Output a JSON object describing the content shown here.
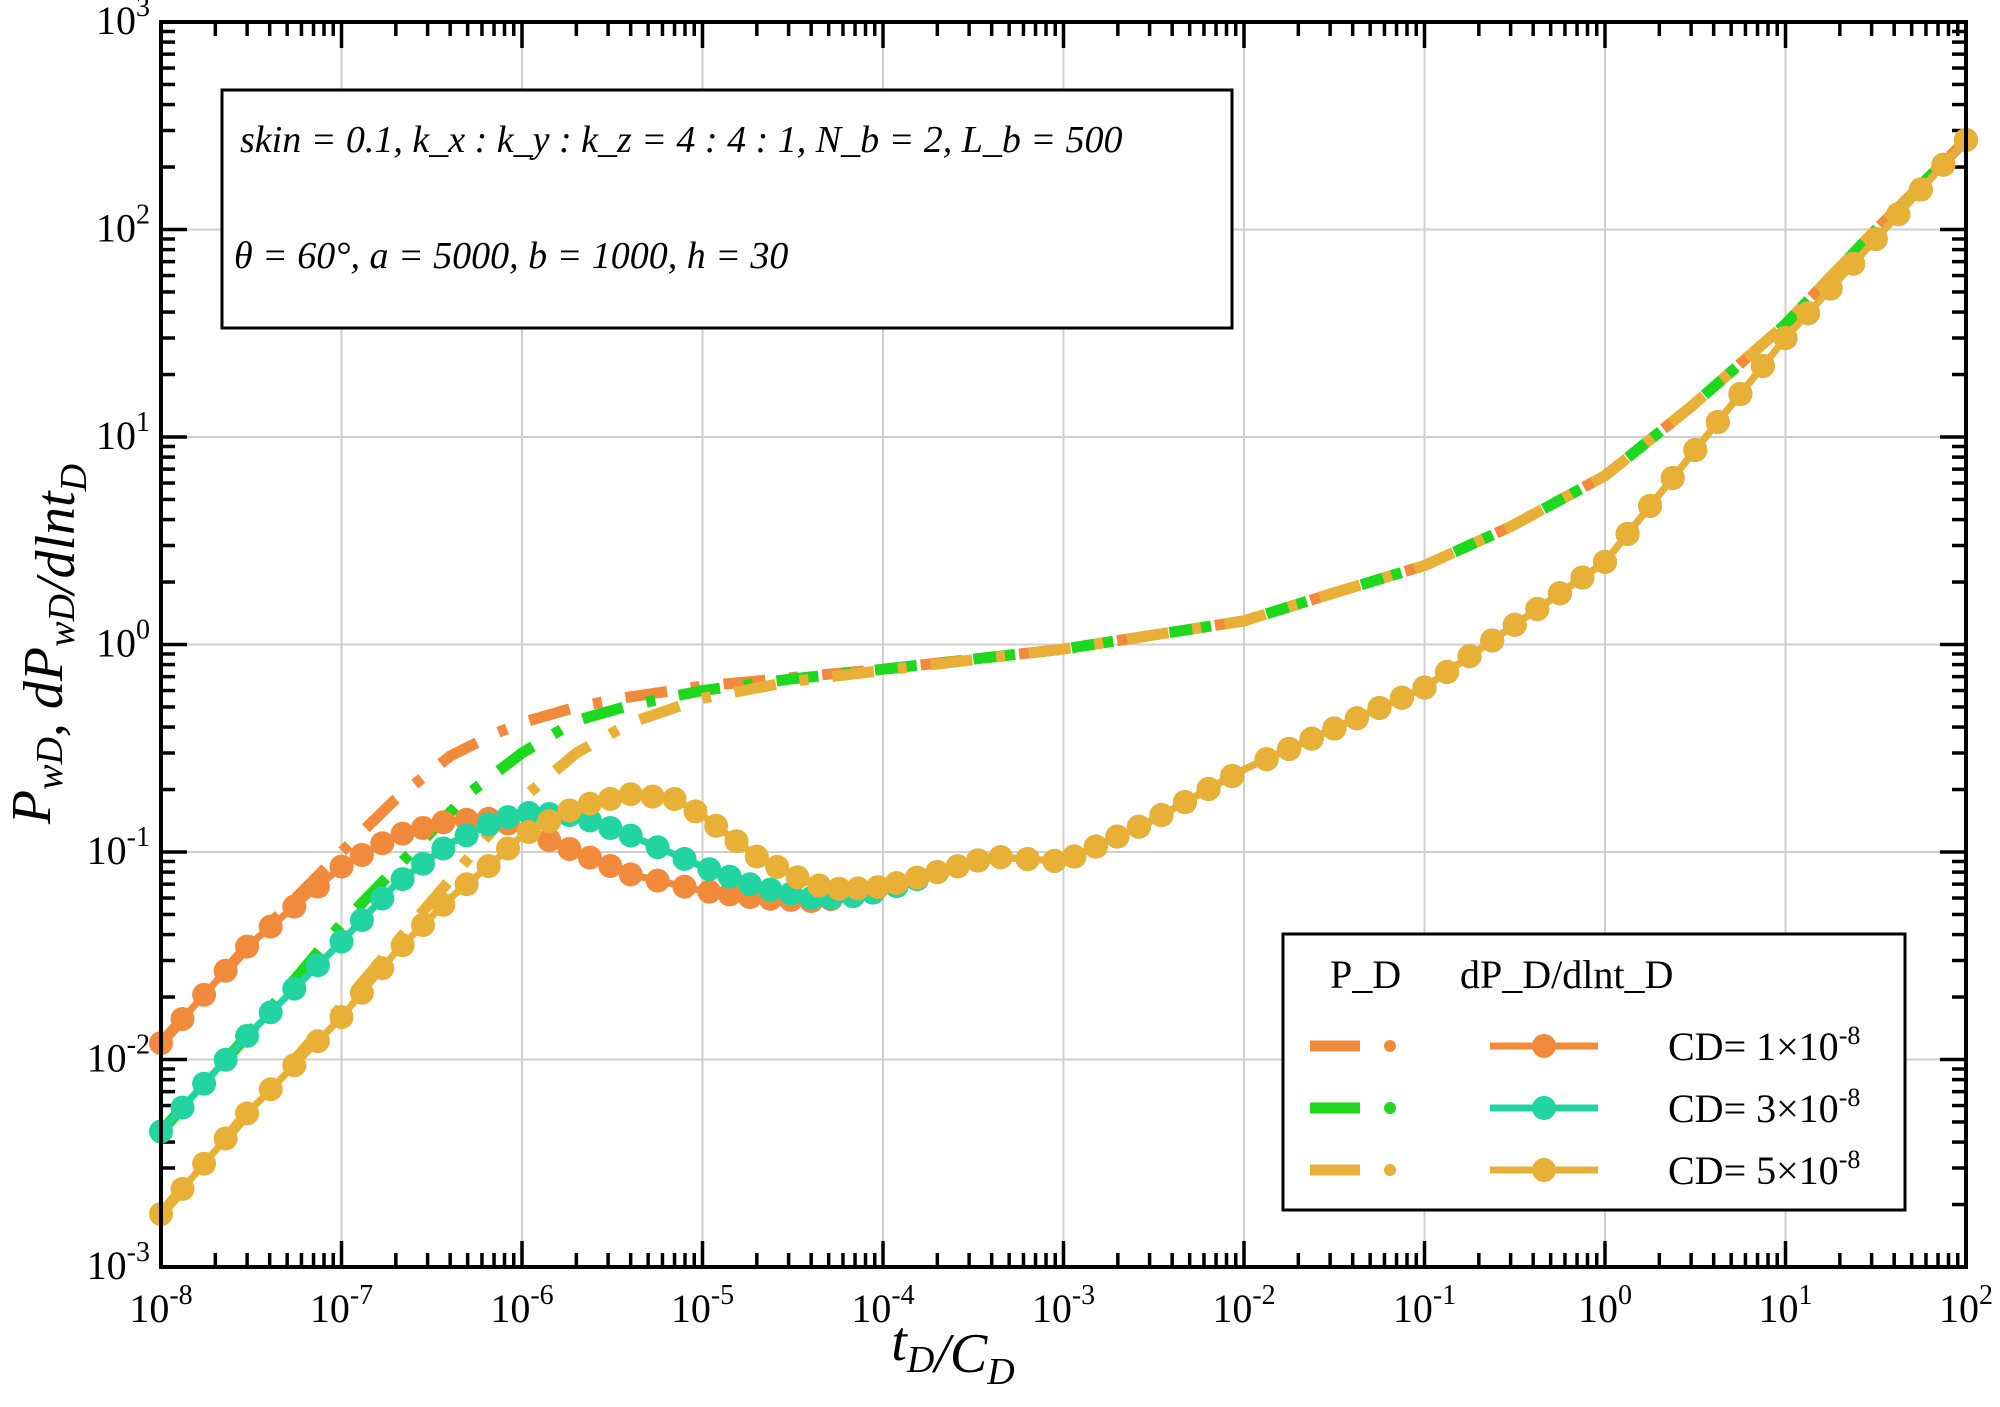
{
  "chart_data": {
    "type": "line",
    "x_scale": "log",
    "y_scale": "log",
    "xlim": [
      1e-08,
      100
    ],
    "ylim": [
      0.001,
      1000
    ],
    "grid": true,
    "xlabel": "t_D/C_D",
    "ylabel": "P_wD, dP_wD/dlnt_D",
    "x_ticks": [
      {
        "mant": "10",
        "exp": "-8"
      },
      {
        "mant": "10",
        "exp": "-7"
      },
      {
        "mant": "10",
        "exp": "-6"
      },
      {
        "mant": "10",
        "exp": "-5"
      },
      {
        "mant": "10",
        "exp": "-4"
      },
      {
        "mant": "10",
        "exp": "-3"
      },
      {
        "mant": "10",
        "exp": "-2"
      },
      {
        "mant": "10",
        "exp": "-1"
      },
      {
        "mant": "10",
        "exp": "0"
      },
      {
        "mant": "10",
        "exp": "1"
      },
      {
        "mant": "10",
        "exp": "2"
      }
    ],
    "y_ticks": [
      {
        "mant": "10",
        "exp": "-3"
      },
      {
        "mant": "10",
        "exp": "-2"
      },
      {
        "mant": "10",
        "exp": "-1"
      },
      {
        "mant": "10",
        "exp": "0"
      },
      {
        "mant": "10",
        "exp": "1"
      },
      {
        "mant": "10",
        "exp": "2"
      },
      {
        "mant": "10",
        "exp": "3"
      }
    ],
    "annotation": {
      "line1": "skin = 0.1, k_x : k_y : k_z = 4 : 4 : 1, N_b = 2, L_b = 500",
      "line2": "θ = 60°, a = 5000, b = 1000, h = 30"
    },
    "legend": {
      "position": "lower-right",
      "header_pd": "P_D",
      "header_deriv": "dP_D/dlnt_D",
      "entries": [
        {
          "label": "CD= 1×10",
          "exp": "-8"
        },
        {
          "label": "CD= 3×10",
          "exp": "-8"
        },
        {
          "label": "CD= 5×10",
          "exp": "-8"
        }
      ]
    },
    "series": [
      {
        "name": "P_D, CD= 1×10-8",
        "style": "dashdot",
        "color": "#F28A3C",
        "x": [
          1e-08,
          3e-08,
          1e-07,
          2e-07,
          4e-07,
          7e-07,
          1e-06,
          2e-06,
          4e-06,
          1e-05,
          3e-05,
          0.0001,
          0.001,
          0.01,
          0.03,
          0.1,
          0.3,
          1,
          3,
          10,
          30,
          100
        ],
        "y": [
          0.012,
          0.035,
          0.1,
          0.18,
          0.29,
          0.37,
          0.42,
          0.5,
          0.56,
          0.63,
          0.69,
          0.76,
          0.95,
          1.3,
          1.75,
          2.4,
          3.7,
          6.5,
          14,
          35,
          95,
          270
        ]
      },
      {
        "name": "P_D, CD= 3×10-8",
        "style": "dashdot",
        "color": "#1ED81E",
        "x": [
          1e-08,
          3e-08,
          1e-07,
          3e-07,
          5e-07,
          1e-06,
          2e-06,
          4e-06,
          1e-05,
          3e-05,
          0.0001,
          0.001,
          0.01,
          0.03,
          0.1,
          0.3,
          1,
          3,
          10,
          30,
          100
        ],
        "y": [
          0.0045,
          0.013,
          0.045,
          0.12,
          0.19,
          0.3,
          0.43,
          0.51,
          0.6,
          0.68,
          0.76,
          0.95,
          1.3,
          1.75,
          2.4,
          3.7,
          6.5,
          14,
          35,
          95,
          270
        ]
      },
      {
        "name": "P_D, CD= 5×10-8",
        "style": "dashdot",
        "color": "#E8B036",
        "x": [
          1e-08,
          3e-08,
          1e-07,
          3e-07,
          7e-07,
          1e-06,
          2e-06,
          4e-06,
          1e-05,
          3e-05,
          0.0001,
          0.001,
          0.01,
          0.03,
          0.1,
          0.3,
          1,
          3,
          10,
          30,
          100
        ],
        "y": [
          0.0018,
          0.0055,
          0.018,
          0.055,
          0.13,
          0.18,
          0.3,
          0.42,
          0.55,
          0.66,
          0.75,
          0.95,
          1.3,
          1.75,
          2.4,
          3.7,
          6.5,
          14,
          35,
          95,
          270
        ]
      },
      {
        "name": "dP_D/dlnt_D, CD= 1×10-8",
        "style": "line-markers",
        "color": "#F28A3C",
        "x": [
          1e-08,
          3e-08,
          1e-07,
          2e-07,
          4e-07,
          7e-07,
          1e-06,
          2e-06,
          4e-06,
          1e-05,
          2e-05,
          4e-05,
          6e-05,
          0.0001,
          0.0002,
          0.0004,
          0.001,
          0.003,
          0.01,
          0.1,
          1,
          10,
          100
        ],
        "y": [
          0.012,
          0.035,
          0.085,
          0.12,
          0.142,
          0.145,
          0.13,
          0.1,
          0.078,
          0.065,
          0.06,
          0.058,
          0.06,
          0.065,
          0.08,
          0.095,
          0.09,
          0.14,
          0.25,
          0.62,
          2.5,
          30,
          270
        ]
      },
      {
        "name": "dP_D/dlnt_D, CD= 3×10-8",
        "style": "line-markers",
        "color": "#22D4A0",
        "x": [
          1e-08,
          3e-08,
          1e-07,
          2e-07,
          4e-07,
          7e-07,
          1e-06,
          2e-06,
          4e-06,
          1e-05,
          2e-05,
          4e-05,
          6e-05,
          0.0001,
          0.0002,
          0.0004,
          0.001,
          0.003,
          0.01,
          0.1,
          1,
          10,
          100
        ],
        "y": [
          0.0045,
          0.013,
          0.037,
          0.07,
          0.11,
          0.14,
          0.155,
          0.15,
          0.12,
          0.085,
          0.068,
          0.06,
          0.06,
          0.065,
          0.08,
          0.095,
          0.09,
          0.14,
          0.25,
          0.62,
          2.5,
          30,
          270
        ]
      },
      {
        "name": "dP_D/dlnt_D, CD= 5×10-8",
        "style": "line-markers",
        "color": "#E8B036",
        "x": [
          1e-08,
          3e-08,
          1e-07,
          2e-07,
          4e-07,
          7e-07,
          1e-06,
          2e-06,
          4e-06,
          7e-06,
          1e-05,
          2e-05,
          4e-05,
          6e-05,
          0.0001,
          0.0002,
          0.0004,
          0.001,
          0.003,
          0.01,
          0.1,
          1,
          10,
          100
        ],
        "y": [
          0.0018,
          0.0055,
          0.016,
          0.033,
          0.06,
          0.09,
          0.12,
          0.165,
          0.19,
          0.18,
          0.15,
          0.095,
          0.07,
          0.066,
          0.068,
          0.08,
          0.095,
          0.09,
          0.14,
          0.25,
          0.62,
          2.5,
          30,
          270
        ]
      }
    ]
  }
}
